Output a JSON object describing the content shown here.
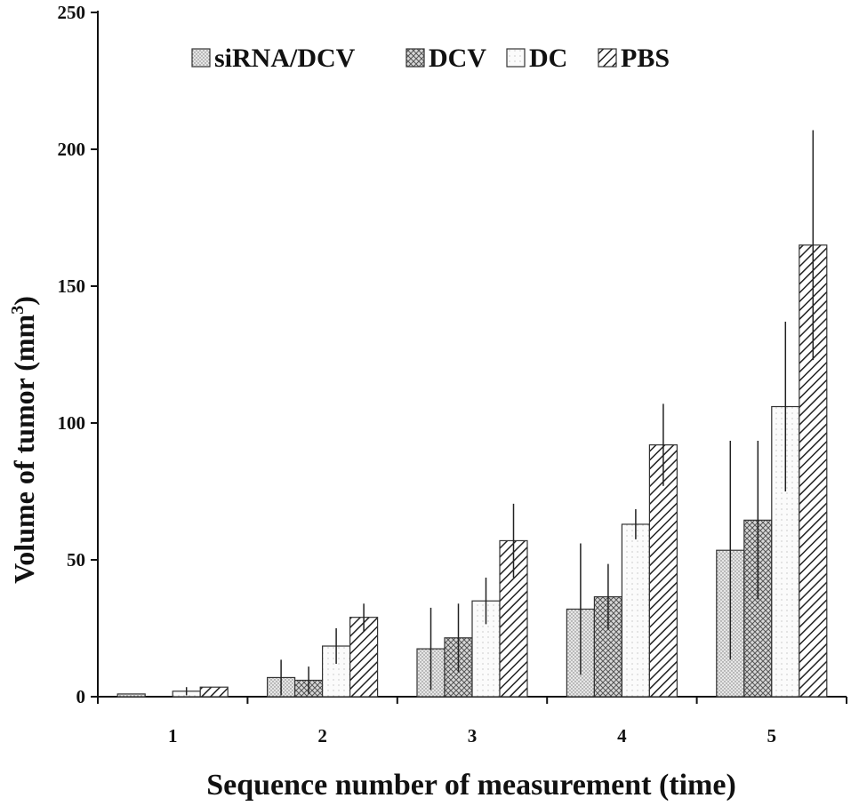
{
  "chart_data": {
    "type": "bar",
    "xlabel": "Sequence number of  measurement (time)",
    "ylabel": "Volume of tumor (mm",
    "ylabel_superscript": "3",
    "ylabel_suffix": ")",
    "ylim": [
      0,
      250
    ],
    "yticks": [
      0,
      50,
      100,
      150,
      200,
      250
    ],
    "categories": [
      "1",
      "2",
      "3",
      "4",
      "5"
    ],
    "legend_position": "top",
    "grid": false,
    "series": [
      {
        "name": "siRNA/DCV",
        "pattern": "dots",
        "values": [
          1,
          7,
          17.5,
          32,
          53.5
        ],
        "errors": [
          0,
          6.5,
          15,
          24,
          40
        ]
      },
      {
        "name": "DCV",
        "pattern": "crosshatch",
        "values": [
          0,
          6,
          21.5,
          36.5,
          64.5
        ],
        "errors": [
          0,
          5,
          12.5,
          12,
          29
        ]
      },
      {
        "name": "DC",
        "pattern": "small-dots",
        "values": [
          2,
          18.5,
          35,
          63,
          106
        ],
        "errors": [
          1.5,
          6.5,
          8.5,
          5.5,
          31
        ]
      },
      {
        "name": "PBS",
        "pattern": "diagonal",
        "values": [
          3.5,
          29,
          57,
          92,
          165
        ],
        "errors": [
          0,
          5,
          13.5,
          15,
          42
        ]
      }
    ]
  }
}
